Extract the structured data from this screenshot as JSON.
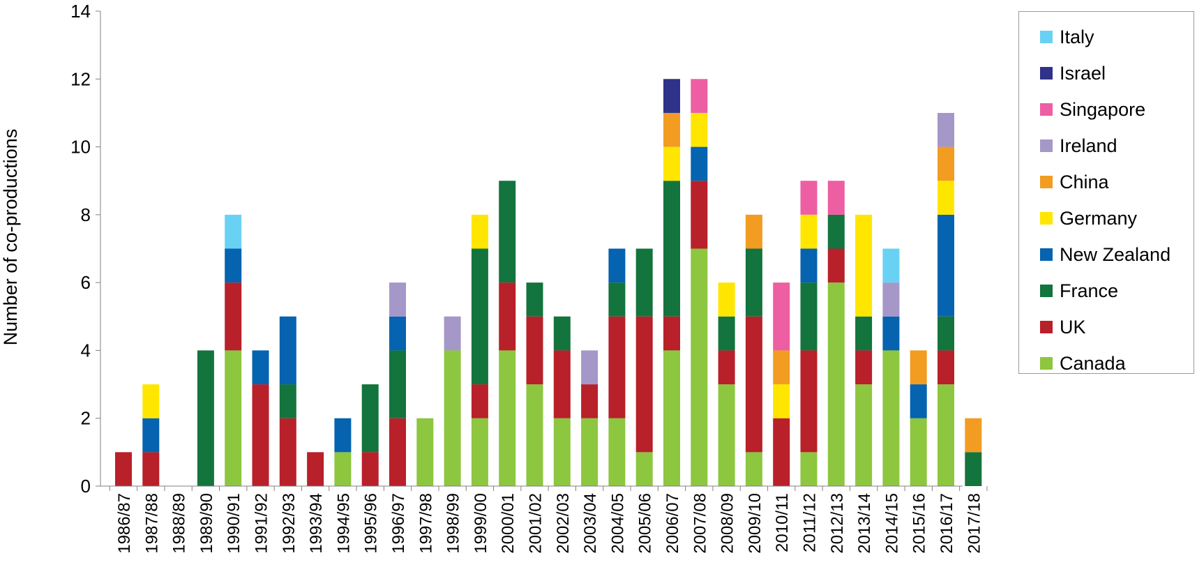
{
  "chart_data": {
    "type": "bar",
    "stacked": true,
    "title": "",
    "xlabel": "",
    "ylabel": "Number of co-productions",
    "ylim": [
      0,
      14
    ],
    "yticks": [
      "0",
      "2",
      "4",
      "6",
      "8",
      "10",
      "12",
      "14"
    ],
    "grid": false,
    "legend_position": "right",
    "categories": [
      "1986/87",
      "1987/88",
      "1988/89",
      "1989/90",
      "1990/91",
      "1991/92",
      "1992/93",
      "1993/94",
      "1994/95",
      "1995/96",
      "1996/97",
      "1997/98",
      "1998/99",
      "1999/00",
      "2000/01",
      "2001/02",
      "2002/03",
      "2003/04",
      "2004/05",
      "2005/06",
      "2006/07",
      "2007/08",
      "2008/09",
      "2009/10",
      "2010/11",
      "2011/12",
      "2012/13",
      "2013/14",
      "2014/15",
      "2015/16",
      "2016/17",
      "2017/18"
    ],
    "series": [
      {
        "name": "Canada",
        "color": "#8dc63f",
        "values": [
          0,
          0,
          0,
          0,
          4,
          0,
          0,
          0,
          1,
          0,
          0,
          2,
          4,
          2,
          4,
          3,
          2,
          2,
          2,
          1,
          4,
          7,
          3,
          1,
          0,
          1,
          6,
          3,
          4,
          2,
          3,
          0
        ]
      },
      {
        "name": "UK",
        "color": "#b8202a",
        "values": [
          1,
          1,
          0,
          0,
          2,
          3,
          2,
          1,
          0,
          1,
          2,
          0,
          0,
          1,
          2,
          2,
          2,
          1,
          3,
          4,
          1,
          2,
          1,
          4,
          2,
          3,
          1,
          1,
          0,
          0,
          1,
          0
        ]
      },
      {
        "name": "France",
        "color": "#13743d",
        "values": [
          0,
          0,
          0,
          4,
          0,
          0,
          1,
          0,
          0,
          2,
          2,
          0,
          0,
          4,
          3,
          1,
          1,
          0,
          1,
          2,
          4,
          0,
          1,
          2,
          0,
          2,
          1,
          1,
          0,
          0,
          1,
          1
        ]
      },
      {
        "name": "New Zealand",
        "color": "#0563b0",
        "values": [
          0,
          1,
          0,
          0,
          1,
          1,
          2,
          0,
          1,
          0,
          1,
          0,
          0,
          0,
          0,
          0,
          0,
          0,
          1,
          0,
          0,
          1,
          0,
          0,
          0,
          1,
          0,
          0,
          1,
          1,
          3,
          0
        ]
      },
      {
        "name": "Germany",
        "color": "#ffe600",
        "values": [
          0,
          1,
          0,
          0,
          0,
          0,
          0,
          0,
          0,
          0,
          0,
          0,
          0,
          1,
          0,
          0,
          0,
          0,
          0,
          0,
          1,
          1,
          1,
          0,
          1,
          1,
          0,
          3,
          0,
          0,
          1,
          0
        ]
      },
      {
        "name": "China",
        "color": "#f29c22",
        "values": [
          0,
          0,
          0,
          0,
          0,
          0,
          0,
          0,
          0,
          0,
          0,
          0,
          0,
          0,
          0,
          0,
          0,
          0,
          0,
          0,
          1,
          0,
          0,
          1,
          1,
          0,
          0,
          0,
          0,
          1,
          1,
          1
        ]
      },
      {
        "name": "Ireland",
        "color": "#a597c8",
        "values": [
          0,
          0,
          0,
          0,
          0,
          0,
          0,
          0,
          0,
          0,
          1,
          0,
          1,
          0,
          0,
          0,
          0,
          1,
          0,
          0,
          0,
          0,
          0,
          0,
          0,
          0,
          0,
          0,
          1,
          0,
          1,
          0
        ]
      },
      {
        "name": "Singapore",
        "color": "#ee5ea3",
        "values": [
          0,
          0,
          0,
          0,
          0,
          0,
          0,
          0,
          0,
          0,
          0,
          0,
          0,
          0,
          0,
          0,
          0,
          0,
          0,
          0,
          0,
          1,
          0,
          0,
          2,
          1,
          1,
          0,
          0,
          0,
          0,
          0
        ]
      },
      {
        "name": "Israel",
        "color": "#2e3289",
        "values": [
          0,
          0,
          0,
          0,
          0,
          0,
          0,
          0,
          0,
          0,
          0,
          0,
          0,
          0,
          0,
          0,
          0,
          0,
          0,
          0,
          1,
          0,
          0,
          0,
          0,
          0,
          0,
          0,
          0,
          0,
          0,
          0
        ]
      },
      {
        "name": "Italy",
        "color": "#69d2f4",
        "values": [
          0,
          0,
          0,
          0,
          1,
          0,
          0,
          0,
          0,
          0,
          0,
          0,
          0,
          0,
          0,
          0,
          0,
          0,
          0,
          0,
          0,
          0,
          0,
          0,
          0,
          0,
          0,
          0,
          1,
          0,
          0,
          0
        ]
      }
    ]
  }
}
